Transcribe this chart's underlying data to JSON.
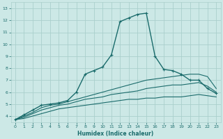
{
  "xlabel": "Humidex (Indice chaleur)",
  "bg_color": "#cce8e6",
  "grid_color": "#aacfcc",
  "line_color": "#1a6b6b",
  "xlim": [
    -0.5,
    23.5
  ],
  "ylim": [
    3.5,
    13.5
  ],
  "xticks": [
    0,
    1,
    2,
    3,
    4,
    5,
    6,
    7,
    8,
    9,
    10,
    11,
    12,
    13,
    14,
    15,
    16,
    17,
    18,
    19,
    20,
    21,
    22,
    23
  ],
  "yticks": [
    4,
    5,
    6,
    7,
    8,
    9,
    10,
    11,
    12,
    13
  ],
  "series": [
    {
      "x": [
        0,
        1,
        2,
        3,
        4,
        5,
        6,
        7,
        8,
        9,
        10,
        11,
        12,
        13,
        14,
        15,
        16,
        17,
        18,
        19,
        20,
        21,
        22,
        23
      ],
      "y": [
        3.7,
        4.1,
        4.5,
        4.9,
        5.0,
        5.1,
        5.3,
        6.0,
        7.5,
        7.8,
        8.1,
        9.1,
        11.9,
        12.2,
        12.5,
        12.6,
        9.0,
        7.9,
        7.8,
        7.5,
        7.0,
        7.0,
        6.3,
        5.9
      ],
      "linestyle": "-",
      "marker": "+",
      "linewidth": 1.0,
      "markersize": 3.0
    },
    {
      "x": [
        0,
        1,
        2,
        3,
        4,
        5,
        6,
        7,
        8,
        9,
        10,
        11,
        12,
        13,
        14,
        15,
        16,
        17,
        18,
        19,
        20,
        21,
        22,
        23
      ],
      "y": [
        3.7,
        4.0,
        4.3,
        4.7,
        4.9,
        5.0,
        5.2,
        5.4,
        5.6,
        5.8,
        6.0,
        6.2,
        6.4,
        6.6,
        6.8,
        7.0,
        7.1,
        7.2,
        7.3,
        7.4,
        7.5,
        7.5,
        7.3,
        6.3
      ],
      "linestyle": "-",
      "marker": null,
      "linewidth": 0.8,
      "markersize": 0
    },
    {
      "x": [
        0,
        1,
        2,
        3,
        4,
        5,
        6,
        7,
        8,
        9,
        10,
        11,
        12,
        13,
        14,
        15,
        16,
        17,
        18,
        19,
        20,
        21,
        22,
        23
      ],
      "y": [
        3.7,
        3.9,
        4.2,
        4.5,
        4.7,
        4.9,
        5.0,
        5.2,
        5.4,
        5.5,
        5.6,
        5.8,
        5.9,
        6.0,
        6.1,
        6.3,
        6.4,
        6.5,
        6.6,
        6.6,
        6.7,
        6.8,
        6.5,
        6.0
      ],
      "linestyle": "-",
      "marker": null,
      "linewidth": 0.8,
      "markersize": 0
    },
    {
      "x": [
        0,
        1,
        2,
        3,
        4,
        5,
        6,
        7,
        8,
        9,
        10,
        11,
        12,
        13,
        14,
        15,
        16,
        17,
        18,
        19,
        20,
        21,
        22,
        23
      ],
      "y": [
        3.7,
        3.8,
        4.0,
        4.2,
        4.4,
        4.6,
        4.7,
        4.8,
        4.9,
        5.0,
        5.1,
        5.2,
        5.3,
        5.4,
        5.4,
        5.5,
        5.5,
        5.6,
        5.6,
        5.6,
        5.7,
        5.8,
        5.7,
        5.6
      ],
      "linestyle": "-",
      "marker": null,
      "linewidth": 0.8,
      "markersize": 0
    }
  ]
}
